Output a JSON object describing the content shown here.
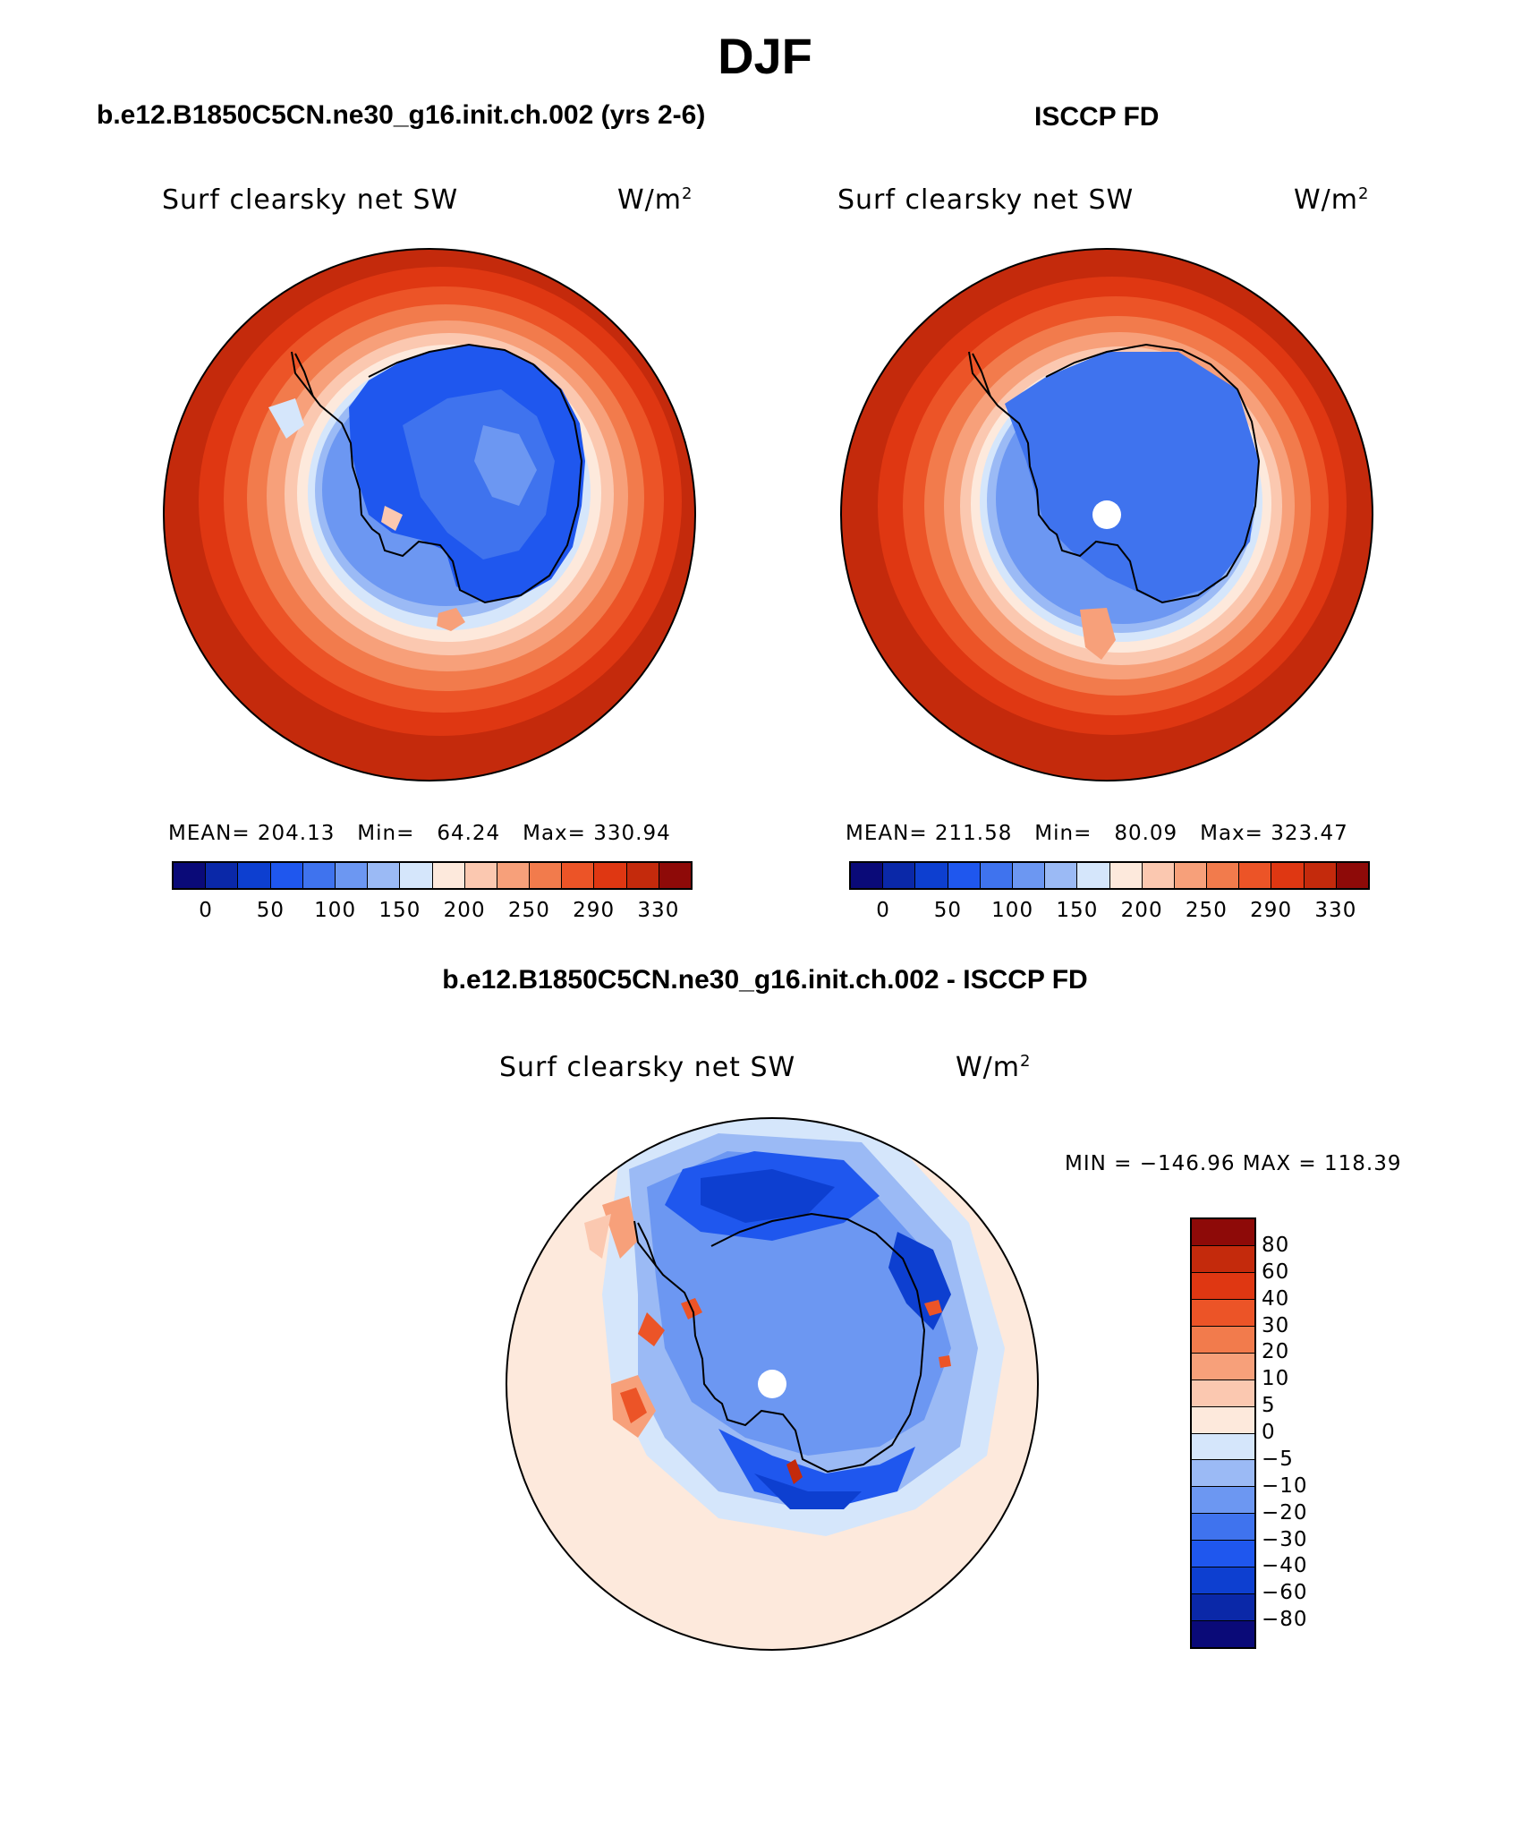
{
  "title": "DJF",
  "panels": {
    "left": {
      "title": "b.e12.B1850C5CN.ne30_g16.init.ch.002 (yrs 2-6)",
      "variable": "Surf clearsky net SW",
      "units_base": "W/m",
      "units_exp": "2",
      "stats": "MEAN= 204.13   Min=   64.24   Max= 330.94"
    },
    "right": {
      "title": "ISCCP FD",
      "variable": "Surf clearsky net SW",
      "units_base": "W/m",
      "units_exp": "2",
      "stats": "MEAN= 211.58   Min=   80.09   Max= 323.47"
    },
    "diff": {
      "title": "b.e12.B1850C5CN.ne30_g16.init.ch.002 - ISCCP FD",
      "variable": "Surf clearsky net SW",
      "units_base": "W/m",
      "units_exp": "2",
      "stats": "MIN = −146.96 MAX = 118.39"
    }
  },
  "colorbar_main": {
    "labels": [
      "0",
      "50",
      "100",
      "150",
      "200",
      "250",
      "290",
      "330"
    ],
    "colors": [
      "#0a0a78",
      "#0a28a8",
      "#0d3fd0",
      "#1f57ee",
      "#3f73ee",
      "#6c97f2",
      "#9bbaf5",
      "#d5e6fb",
      "#fde9dc",
      "#fbc8b0",
      "#f7a07a",
      "#f27b4c",
      "#ec5427",
      "#df3712",
      "#c42a0c",
      "#8e0a08"
    ]
  },
  "colorbar_diff": {
    "labels": [
      "80",
      "60",
      "40",
      "30",
      "20",
      "10",
      "5",
      "0",
      "−5",
      "−10",
      "−20",
      "−30",
      "−40",
      "−60",
      "−80"
    ],
    "colors": [
      "#8e0a08",
      "#c42a0c",
      "#df3712",
      "#ec5427",
      "#f27b4c",
      "#f7a07a",
      "#fbc8b0",
      "#fde9dc",
      "#d5e6fb",
      "#9bbaf5",
      "#6c97f2",
      "#3f73ee",
      "#1f57ee",
      "#0d3fd0",
      "#0a28a8",
      "#0a0a78"
    ]
  }
}
